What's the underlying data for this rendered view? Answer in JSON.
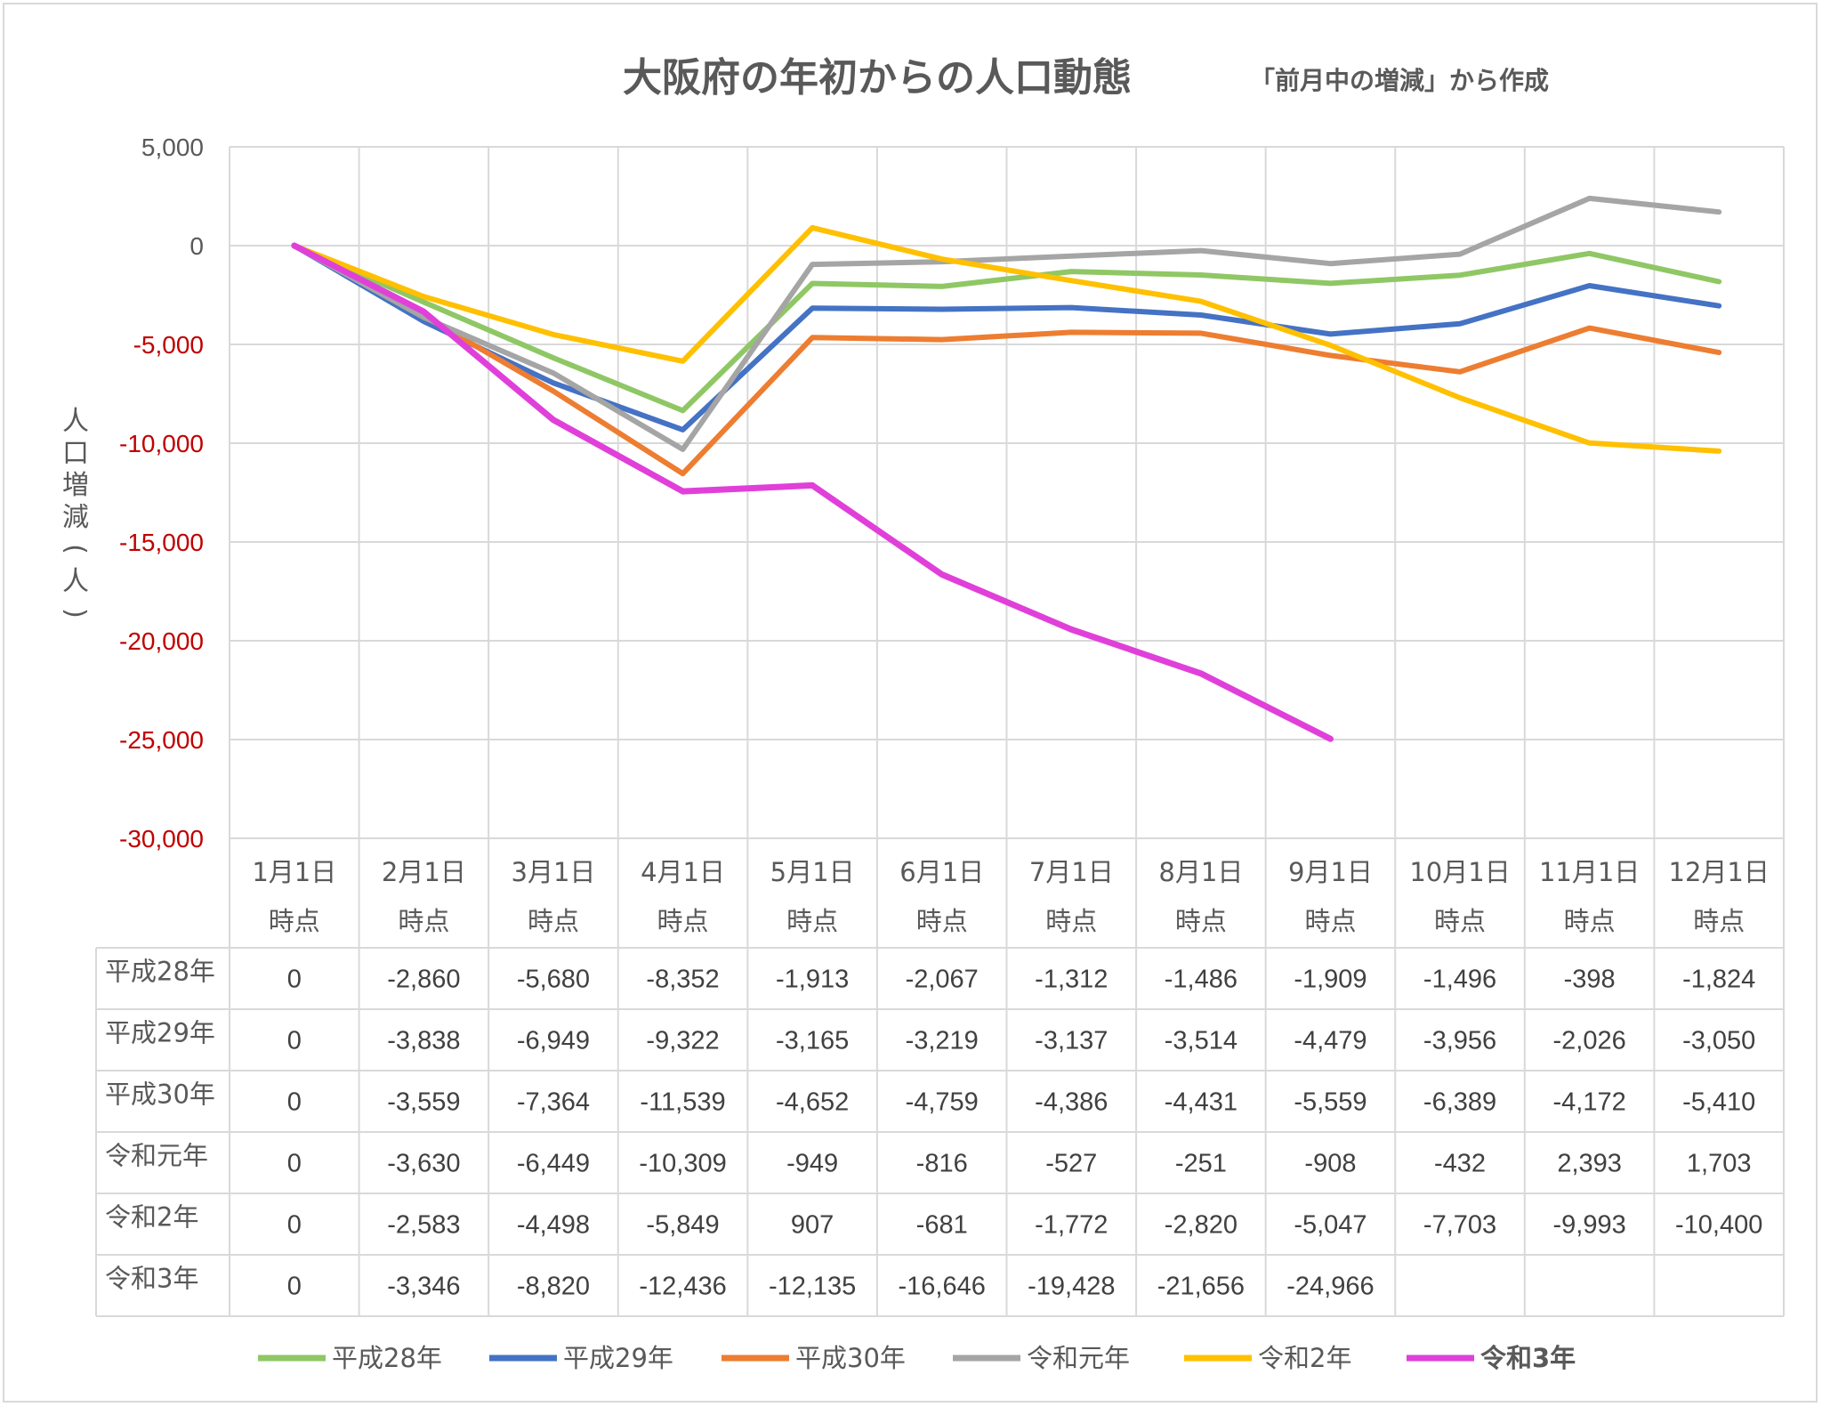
{
  "chart_data": {
    "type": "line",
    "title": "大阪府の年初からの人口動態",
    "subtitle": "「前月中の増減」から作成",
    "ylabel": "人口増減(人)",
    "ylim": [
      -30000,
      5000
    ],
    "yticks": [
      5000,
      0,
      -5000,
      -10000,
      -15000,
      -20000,
      -25000,
      -30000
    ],
    "ytick_labels": [
      "5,000",
      "0",
      "-5,000",
      "-10,000",
      "-15,000",
      "-20,000",
      "-25,000",
      "-30,000"
    ],
    "categories": [
      [
        "1月1日",
        "時点"
      ],
      [
        "2月1日",
        "時点"
      ],
      [
        "3月1日",
        "時点"
      ],
      [
        "4月1日",
        "時点"
      ],
      [
        "5月1日",
        "時点"
      ],
      [
        "6月1日",
        "時点"
      ],
      [
        "7月1日",
        "時点"
      ],
      [
        "8月1日",
        "時点"
      ],
      [
        "9月1日",
        "時点"
      ],
      [
        "10月1日",
        "時点"
      ],
      [
        "11月1日",
        "時点"
      ],
      [
        "12月1日",
        "時点"
      ]
    ],
    "grid": true,
    "legend": "bottom",
    "series": [
      {
        "name": "平成28年",
        "color": "#8fc765",
        "bold": false,
        "values": [
          0,
          -2860,
          -5680,
          -8352,
          -1913,
          -2067,
          -1312,
          -1486,
          -1909,
          -1496,
          -398,
          -1824
        ],
        "labels": [
          "0",
          "-2,860",
          "-5,680",
          "-8,352",
          "-1,913",
          "-2,067",
          "-1,312",
          "-1,486",
          "-1,909",
          "-1,496",
          "-398",
          "-1,824"
        ]
      },
      {
        "name": "平成29年",
        "color": "#4472c4",
        "bold": false,
        "values": [
          0,
          -3838,
          -6949,
          -9322,
          -3165,
          -3219,
          -3137,
          -3514,
          -4479,
          -3956,
          -2026,
          -3050
        ],
        "labels": [
          "0",
          "-3,838",
          "-6,949",
          "-9,322",
          "-3,165",
          "-3,219",
          "-3,137",
          "-3,514",
          "-4,479",
          "-3,956",
          "-2,026",
          "-3,050"
        ]
      },
      {
        "name": "平成30年",
        "color": "#ed7d31",
        "bold": false,
        "values": [
          0,
          -3559,
          -7364,
          -11539,
          -4652,
          -4759,
          -4386,
          -4431,
          -5559,
          -6389,
          -4172,
          -5410
        ],
        "labels": [
          "0",
          "-3,559",
          "-7,364",
          "-11,539",
          "-4,652",
          "-4,759",
          "-4,386",
          "-4,431",
          "-5,559",
          "-6,389",
          "-4,172",
          "-5,410"
        ]
      },
      {
        "name": "令和元年",
        "color": "#a5a5a5",
        "bold": false,
        "values": [
          0,
          -3630,
          -6449,
          -10309,
          -949,
          -816,
          -527,
          -251,
          -908,
          -432,
          2393,
          1703
        ],
        "labels": [
          "0",
          "-3,630",
          "-6,449",
          "-10,309",
          "-949",
          "-816",
          "-527",
          "-251",
          "-908",
          "-432",
          "2,393",
          "1,703"
        ]
      },
      {
        "name": "令和2年",
        "color": "#ffc000",
        "bold": false,
        "values": [
          0,
          -2583,
          -4498,
          -5849,
          907,
          -681,
          -1772,
          -2820,
          -5047,
          -7703,
          -9993,
          -10400
        ],
        "labels": [
          "0",
          "-2,583",
          "-4,498",
          "-5,849",
          "907",
          "-681",
          "-1,772",
          "-2,820",
          "-5,047",
          "-7,703",
          "-9,993",
          "-10,400"
        ]
      },
      {
        "name": "令和3年",
        "color": "#e040d9",
        "bold": true,
        "values": [
          0,
          -3346,
          -8820,
          -12436,
          -12135,
          -16646,
          -19428,
          -21656,
          -24966,
          null,
          null,
          null
        ],
        "labels": [
          "0",
          "-3,346",
          "-8,820",
          "-12,436",
          "-12,135",
          "-16,646",
          "-19,428",
          "-21,656",
          "-24,966",
          "",
          "",
          ""
        ]
      }
    ],
    "colors": {
      "positive_tick": "#595959",
      "negative_tick": "#c00000",
      "grid": "#d9d9d9",
      "text": "#595959"
    }
  }
}
